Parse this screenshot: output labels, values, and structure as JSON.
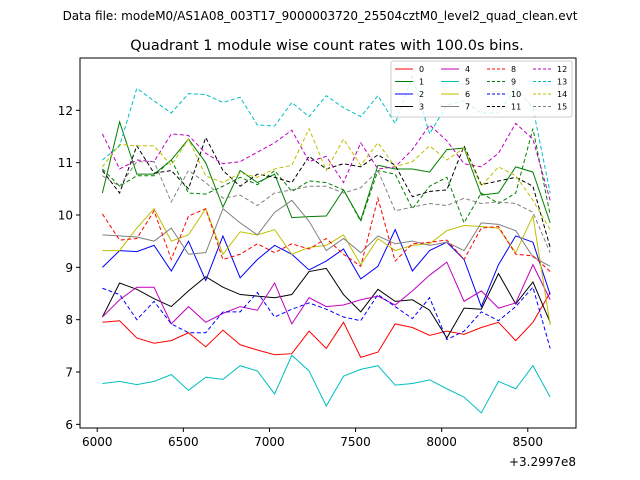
{
  "chart_data": {
    "type": "line",
    "suptitle": "Data file: modeM0/AS1A08_003T17_9000003720_25504cztM0_level2_quad_clean.evt",
    "title": "Quadrant 1 module wise count rates with 100.0s bins.",
    "xlabel": "",
    "ylabel": "",
    "x_offset_label": "+3.2997e8",
    "xlim": [
      5900,
      8780
    ],
    "ylim": [
      5.93,
      13.0
    ],
    "xticks": [
      6000,
      6500,
      7000,
      7500,
      8000,
      8500
    ],
    "yticks": [
      6,
      7,
      8,
      9,
      10,
      11,
      12
    ],
    "x": [
      6030,
      6130,
      6230,
      6330,
      6430,
      6530,
      6630,
      6730,
      6830,
      6930,
      7030,
      7130,
      7230,
      7330,
      7430,
      7530,
      7630,
      7730,
      7830,
      7930,
      8030,
      8130,
      8230,
      8330,
      8430,
      8530,
      8630
    ],
    "legend_position": "upper right",
    "series": [
      {
        "name": "0",
        "color": "#ff0000",
        "dash": "solid",
        "values": [
          7.95,
          7.98,
          7.65,
          7.55,
          7.6,
          7.75,
          7.48,
          7.8,
          7.52,
          7.42,
          7.33,
          7.35,
          7.78,
          7.45,
          7.95,
          7.28,
          7.38,
          7.92,
          7.85,
          7.7,
          7.78,
          7.72,
          7.85,
          7.95,
          7.6,
          7.95,
          8.52
        ]
      },
      {
        "name": "1",
        "color": "#008000",
        "dash": "solid",
        "values": [
          10.42,
          11.78,
          10.78,
          10.78,
          11.05,
          11.45,
          11.0,
          10.15,
          10.85,
          10.62,
          10.78,
          9.95,
          9.97,
          9.98,
          10.48,
          9.9,
          10.95,
          10.88,
          10.88,
          10.82,
          11.25,
          11.28,
          10.38,
          10.42,
          10.92,
          10.82,
          9.85
        ]
      },
      {
        "name": "2",
        "color": "#0000ff",
        "dash": "solid",
        "values": [
          9.0,
          9.32,
          9.3,
          9.42,
          8.93,
          9.5,
          8.75,
          9.6,
          8.8,
          9.15,
          9.42,
          9.25,
          8.95,
          9.12,
          9.35,
          8.78,
          9.02,
          9.72,
          8.93,
          9.32,
          9.48,
          9.15,
          8.25,
          9.05,
          9.6,
          9.48,
          8.48
        ]
      },
      {
        "name": "3",
        "color": "#000000",
        "dash": "solid",
        "values": [
          8.05,
          8.7,
          8.58,
          8.4,
          8.25,
          8.55,
          8.82,
          8.62,
          8.48,
          8.45,
          8.42,
          8.48,
          8.92,
          8.98,
          8.48,
          8.15,
          8.58,
          8.35,
          8.38,
          8.18,
          7.65,
          8.22,
          8.2,
          8.88,
          8.3,
          8.72,
          7.95
        ]
      },
      {
        "name": "4",
        "color": "#bf00bf",
        "dash": "solid",
        "values": [
          8.05,
          8.38,
          8.62,
          8.62,
          7.92,
          8.25,
          7.95,
          8.12,
          8.25,
          8.18,
          8.7,
          7.92,
          8.42,
          8.25,
          8.28,
          8.38,
          8.45,
          8.28,
          8.55,
          8.85,
          9.1,
          8.35,
          8.55,
          8.22,
          8.32,
          9.05,
          8.38
        ]
      },
      {
        "name": "5",
        "color": "#00bfbf",
        "dash": "solid",
        "values": [
          6.78,
          6.82,
          6.76,
          6.82,
          6.95,
          6.65,
          6.9,
          6.86,
          7.12,
          7.02,
          6.58,
          7.32,
          7.02,
          6.35,
          6.92,
          7.05,
          7.12,
          6.75,
          6.78,
          6.85,
          6.68,
          6.52,
          6.22,
          6.82,
          6.68,
          7.12,
          6.52
        ]
      },
      {
        "name": "6",
        "color": "#bfbf00",
        "dash": "solid",
        "values": [
          9.32,
          9.32,
          9.75,
          10.12,
          9.5,
          9.62,
          10.12,
          9.25,
          9.68,
          9.62,
          9.72,
          9.25,
          9.38,
          9.42,
          9.62,
          9.05,
          9.55,
          9.32,
          9.42,
          9.45,
          9.7,
          9.8,
          9.78,
          9.75,
          9.28,
          9.98,
          7.9
        ]
      },
      {
        "name": "7",
        "color": "#808080",
        "dash": "solid",
        "values": [
          9.62,
          9.6,
          9.58,
          9.5,
          9.75,
          9.25,
          9.28,
          10.12,
          9.85,
          9.62,
          10.05,
          10.28,
          9.88,
          9.32,
          9.55,
          9.28,
          9.6,
          9.45,
          9.5,
          9.42,
          9.48,
          9.32,
          9.85,
          9.82,
          9.7,
          9.2,
          9.02
        ]
      },
      {
        "name": "8",
        "color": "#ff0000",
        "dash": "dashed",
        "values": [
          10.02,
          9.52,
          9.55,
          10.08,
          9.15,
          9.98,
          10.12,
          9.15,
          9.25,
          9.45,
          9.28,
          9.45,
          9.35,
          9.55,
          9.25,
          9.02,
          10.32,
          9.12,
          9.45,
          9.48,
          9.52,
          9.15,
          9.75,
          9.78,
          9.25,
          9.22,
          8.92
        ]
      },
      {
        "name": "9",
        "color": "#008000",
        "dash": "dashed",
        "values": [
          10.88,
          10.55,
          10.75,
          10.75,
          11.05,
          10.42,
          10.4,
          10.55,
          10.72,
          10.58,
          10.85,
          10.45,
          10.65,
          10.62,
          10.48,
          9.88,
          10.85,
          10.78,
          10.12,
          10.55,
          10.72,
          9.85,
          10.42,
          10.22,
          10.42,
          11.65,
          10.0
        ]
      },
      {
        "name": "10",
        "color": "#0000ff",
        "dash": "dashed",
        "values": [
          8.6,
          8.48,
          8.0,
          8.35,
          7.92,
          7.75,
          7.75,
          8.15,
          8.15,
          8.52,
          8.05,
          8.2,
          8.32,
          8.2,
          8.05,
          7.98,
          8.48,
          8.25,
          8.02,
          8.42,
          7.62,
          7.78,
          8.15,
          7.98,
          8.25,
          8.62,
          7.45
        ]
      },
      {
        "name": "11",
        "color": "#000000",
        "dash": "dashed",
        "values": [
          10.85,
          10.42,
          11.32,
          10.8,
          10.85,
          10.5,
          11.48,
          10.85,
          10.55,
          10.78,
          10.72,
          10.62,
          11.12,
          10.88,
          10.98,
          10.92,
          11.15,
          10.95,
          10.35,
          10.45,
          10.48,
          11.32,
          10.58,
          10.65,
          10.72,
          10.55,
          9.38
        ]
      },
      {
        "name": "12",
        "color": "#bf00bf",
        "dash": "dashed",
        "values": [
          11.55,
          10.88,
          11.05,
          11.02,
          11.55,
          11.52,
          11.18,
          10.98,
          11.02,
          11.2,
          11.38,
          11.62,
          11.02,
          11.12,
          10.62,
          11.38,
          10.88,
          10.92,
          11.25,
          11.72,
          11.42,
          10.98,
          10.92,
          11.18,
          11.75,
          11.45,
          10.28
        ]
      },
      {
        "name": "13",
        "color": "#00bfbf",
        "dash": "dashed",
        "values": [
          11.05,
          11.32,
          12.42,
          12.18,
          11.95,
          12.32,
          12.3,
          12.15,
          12.25,
          11.72,
          11.7,
          12.15,
          11.88,
          12.28,
          12.05,
          11.88,
          12.28,
          11.75,
          12.65,
          11.55,
          12.1,
          12.18,
          11.95,
          11.95,
          12.42,
          12.05,
          10.42
        ]
      },
      {
        "name": "14",
        "color": "#bfbf00",
        "dash": "dashed",
        "values": [
          10.92,
          11.35,
          11.32,
          11.32,
          10.95,
          11.45,
          10.75,
          10.62,
          10.8,
          10.72,
          10.88,
          10.95,
          11.65,
          10.85,
          11.45,
          10.95,
          11.38,
          10.92,
          11.02,
          11.32,
          11.05,
          11.28,
          10.55,
          10.92,
          10.75,
          10.28,
          9.72
        ]
      },
      {
        "name": "15",
        "color": "#808080",
        "dash": "dashed",
        "values": [
          10.75,
          10.55,
          11.02,
          11.02,
          10.25,
          10.85,
          10.62,
          10.32,
          10.38,
          10.18,
          10.42,
          10.48,
          10.55,
          10.55,
          10.42,
          10.52,
          10.85,
          10.08,
          10.15,
          10.22,
          10.18,
          10.32,
          10.22,
          10.25,
          10.22,
          10.05,
          9.28
        ]
      }
    ]
  }
}
